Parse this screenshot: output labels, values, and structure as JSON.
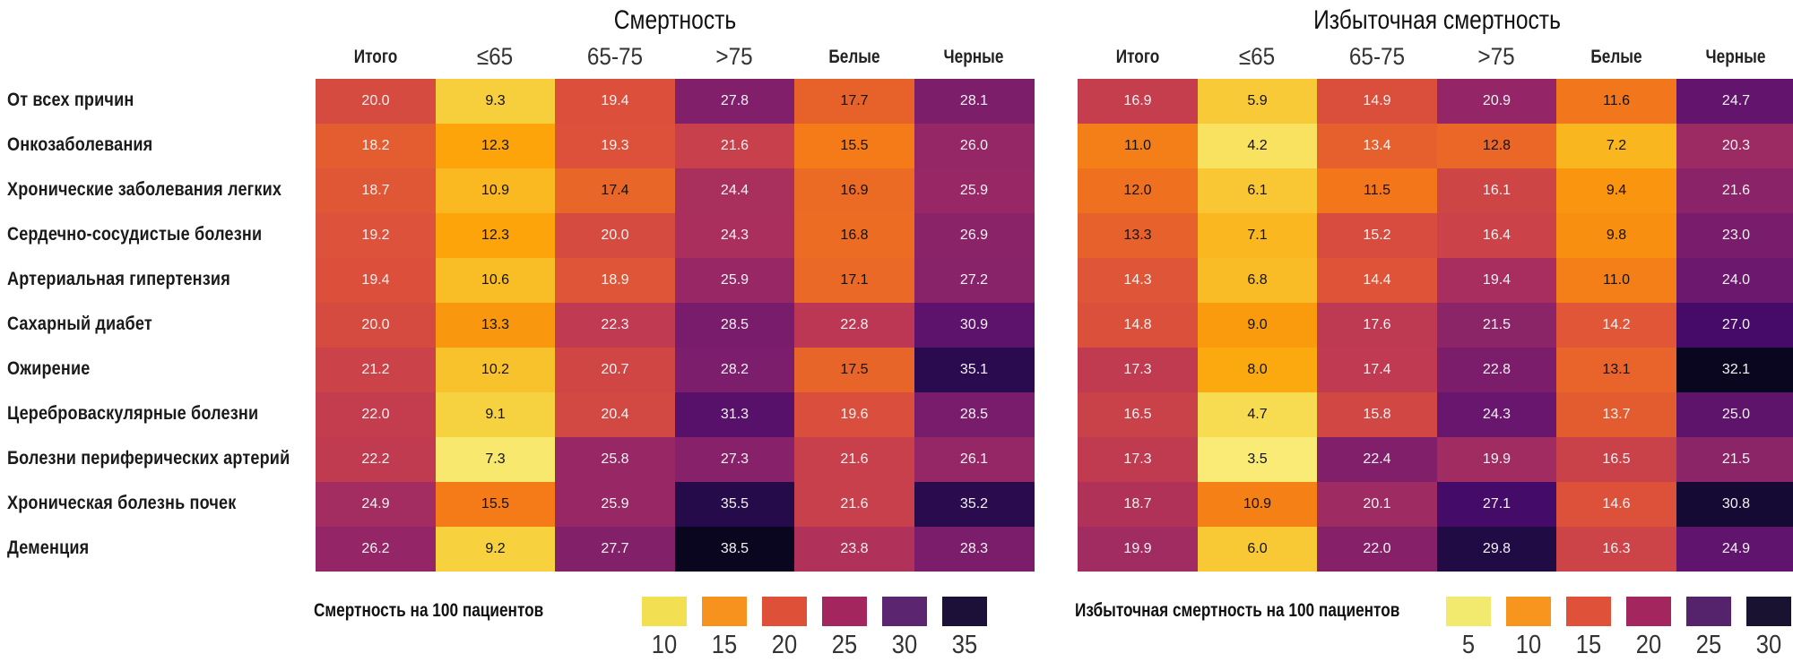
{
  "chart_data": [
    {
      "type": "heatmap",
      "title": "Смертность",
      "columns": [
        "Итого",
        "≤65",
        "65-75",
        ">75",
        "Белые",
        "Черные"
      ],
      "rows": [
        "От всех причин",
        "Онкозаболевания",
        "Хронические заболевания легких",
        "Сердечно-сосудистые болезни",
        "Артериальная гипертензия",
        "Сахарный диабет",
        "Ожирение",
        "Цереброваскулярные болезни",
        "Болезни периферических артерий",
        "Хроническая болезнь почек",
        "Деменция"
      ],
      "values": [
        [
          "20.0",
          "9.3",
          "19.4",
          "27.8",
          "17.7",
          "28.1"
        ],
        [
          "18.2",
          "12.3",
          "19.3",
          "21.6",
          "15.5",
          "26.0"
        ],
        [
          "18.7",
          "10.9",
          "17.4",
          "24.4",
          "16.9",
          "25.9"
        ],
        [
          "19.2",
          "12.3",
          "20.0",
          "24.3",
          "16.8",
          "26.9"
        ],
        [
          "19.4",
          "10.6",
          "18.9",
          "25.9",
          "17.1",
          "27.2"
        ],
        [
          "20.0",
          "13.3",
          "22.3",
          "28.5",
          "22.8",
          "30.9"
        ],
        [
          "21.2",
          "10.2",
          "20.7",
          "28.2",
          "17.5",
          "35.1"
        ],
        [
          "22.0",
          "9.1",
          "20.4",
          "31.3",
          "19.6",
          "28.5"
        ],
        [
          "22.2",
          "7.3",
          "25.8",
          "27.3",
          "21.6",
          "26.1"
        ],
        [
          "24.9",
          "15.5",
          "25.9",
          "35.5",
          "21.6",
          "35.2"
        ],
        [
          "26.2",
          "9.2",
          "27.7",
          "38.5",
          "23.8",
          "28.3"
        ]
      ],
      "color_range": [
        7,
        38.5
      ],
      "colormap": "inferno_r",
      "legend": {
        "title": "Смертность на 100 пациентов",
        "ticks": [
          "10",
          "15",
          "20",
          "25",
          "30",
          "35"
        ],
        "colors": [
          "#f2df52",
          "#f7921e",
          "#df5038",
          "#a3265f",
          "#5c2570",
          "#1d1038"
        ]
      }
    },
    {
      "type": "heatmap",
      "title": "Избыточная смертность",
      "columns": [
        "Итого",
        "≤65",
        "65-75",
        ">75",
        "Белые",
        "Черные"
      ],
      "rows": [
        "От всех причин",
        "Онкозаболевания",
        "Хронические заболевания легких",
        "Сердечно-сосудистые болезни",
        "Артериальная гипертензия",
        "Сахарный диабет",
        "Ожирение",
        "Цереброваскулярные болезни",
        "Болезни периферических артерий",
        "Хроническая болезнь почек",
        "Деменция"
      ],
      "values": [
        [
          "16.9",
          "5.9",
          "14.9",
          "20.9",
          "11.6",
          "24.7"
        ],
        [
          "11.0",
          "4.2",
          "13.4",
          "12.8",
          "7.2",
          "20.3"
        ],
        [
          "12.0",
          "6.1",
          "11.5",
          "16.1",
          "9.4",
          "21.6"
        ],
        [
          "13.3",
          "7.1",
          "15.2",
          "16.4",
          "9.8",
          "23.0"
        ],
        [
          "14.3",
          "6.8",
          "14.4",
          "19.4",
          "11.0",
          "24.0"
        ],
        [
          "14.8",
          "9.0",
          "17.6",
          "21.5",
          "14.2",
          "27.0"
        ],
        [
          "17.3",
          "8.0",
          "17.4",
          "22.8",
          "13.1",
          "32.1"
        ],
        [
          "16.5",
          "4.7",
          "15.8",
          "24.3",
          "13.7",
          "25.0"
        ],
        [
          "17.3",
          "3.5",
          "22.4",
          "19.9",
          "16.5",
          "21.5"
        ],
        [
          "18.7",
          "10.9",
          "20.1",
          "27.1",
          "14.6",
          "30.8"
        ],
        [
          "19.9",
          "6.0",
          "22.0",
          "29.8",
          "16.3",
          "24.9"
        ]
      ],
      "color_range": [
        3.5,
        32.1
      ],
      "colormap": "inferno_r",
      "legend": {
        "title": "Избыточная смертность на 100 пациентов",
        "ticks": [
          "5",
          "10",
          "15",
          "20",
          "25",
          "30"
        ],
        "colors": [
          "#f1ea6e",
          "#f7951f",
          "#e0513a",
          "#a3265f",
          "#55226c",
          "#1a1231"
        ]
      }
    }
  ]
}
